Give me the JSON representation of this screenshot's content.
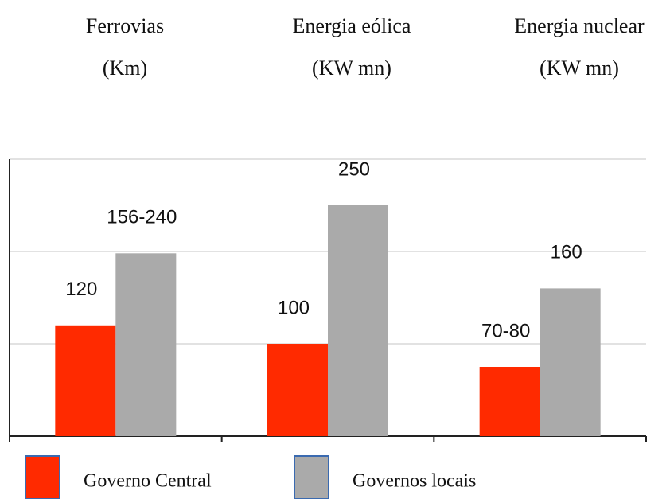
{
  "chart_data": {
    "type": "bar",
    "categories": [
      "Ferrovias",
      "Energia eólica",
      "Energia nuclear"
    ],
    "category_units": [
      "(Km)",
      "(KW mn)",
      "(KW mn)"
    ],
    "series": [
      {
        "name": "Governo Central",
        "color": "#ff2a00",
        "values": [
          120,
          100,
          75
        ],
        "value_labels": [
          "120",
          "100",
          "70-80"
        ]
      },
      {
        "name": "Governos locais",
        "color": "#aaaaaa",
        "values": [
          198,
          250,
          160
        ],
        "value_labels": [
          "156-240",
          "250",
          "160"
        ]
      }
    ],
    "ylim": [
      0,
      300
    ],
    "yticks": [
      0,
      100,
      200,
      300
    ],
    "grid": true
  }
}
